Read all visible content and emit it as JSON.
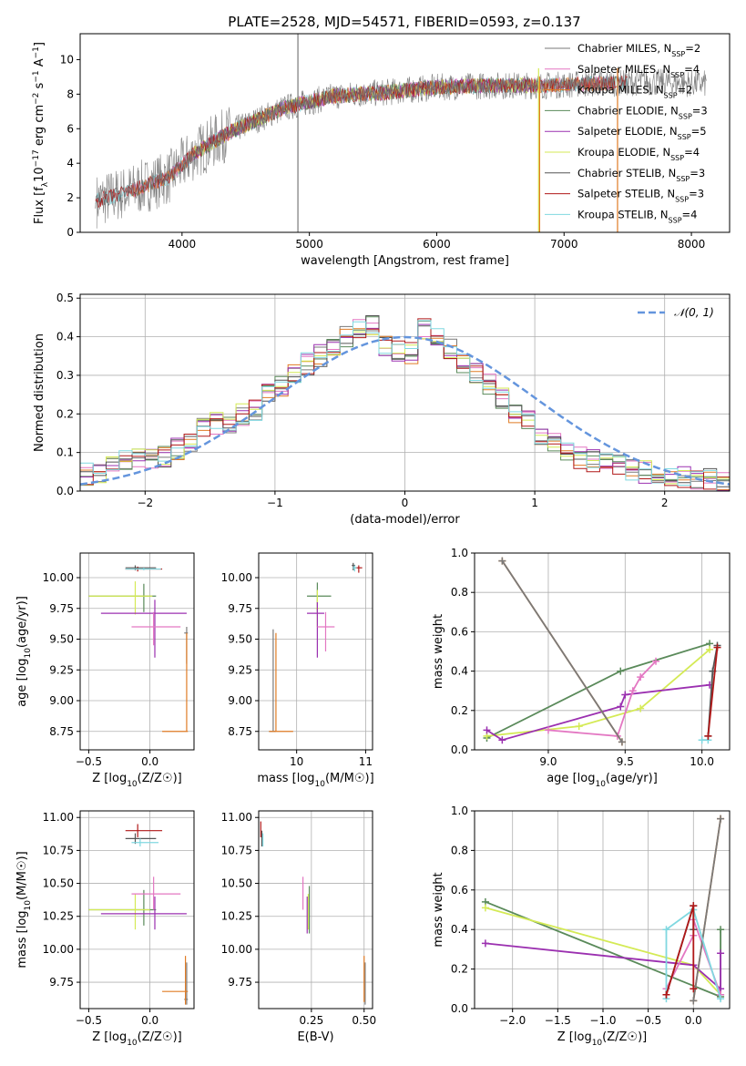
{
  "title": "PLATE=2528, MJD=54571, FIBERID=0593, z=0.137",
  "colors": {
    "Chabrier MILES": "#7a7a7a",
    "Salpeter MILES": "#e377c2",
    "Kroupa MILES": "#e07b24",
    "Chabrier ELODIE": "#5a8a5a",
    "Salpeter ELODIE": "#9b30b0",
    "Kroupa ELODIE": "#d4ea55",
    "Chabrier STELIB": "#555555",
    "Salpeter STELIB": "#b01818",
    "Kroupa STELIB": "#80d8e0",
    "normal": "#6495dd"
  },
  "chart_data": [
    {
      "id": "spectrum",
      "type": "line",
      "xlabel": "wavelength [Angstrom, rest frame]",
      "ylabel": "Flux [f_λ 10^-17 erg cm^-2 s^-1 A^-1]",
      "xlim": [
        3200,
        8300
      ],
      "ylim": [
        0,
        11.5
      ],
      "xticks": [
        4000,
        5000,
        6000,
        7000,
        8000
      ],
      "yticks": [
        0,
        2,
        4,
        6,
        8,
        10
      ],
      "grid": false,
      "legend_position": "top-right",
      "legend": [
        {
          "series": "Chabrier MILES",
          "label": "Chabrier MILES, N",
          "sub": "SSP",
          "val": "=2"
        },
        {
          "series": "Salpeter MILES",
          "label": "Salpeter MILES, N",
          "sub": "SSP",
          "val": "=4"
        },
        {
          "series": "Kroupa MILES",
          "label": "Kroupa MILES, N",
          "sub": "SSP",
          "val": "=2"
        },
        {
          "series": "Chabrier ELODIE",
          "label": "Chabrier ELODIE, N",
          "sub": "SSP",
          "val": "=3"
        },
        {
          "series": "Salpeter ELODIE",
          "label": "Salpeter ELODIE, N",
          "sub": "SSP",
          "val": "=5"
        },
        {
          "series": "Kroupa ELODIE",
          "label": "Kroupa ELODIE, N",
          "sub": "SSP",
          "val": "=4"
        },
        {
          "series": "Chabrier STELIB",
          "label": "Chabrier STELIB, N",
          "sub": "SSP",
          "val": "=3"
        },
        {
          "series": "Salpeter STELIB",
          "label": "Salpeter STELIB, N",
          "sub": "SSP",
          "val": "=3"
        },
        {
          "series": "Kroupa STELIB",
          "label": "Kroupa STELIB, N",
          "sub": "SSP",
          "val": "=4"
        }
      ],
      "continuum": [
        [
          3320,
          1.8
        ],
        [
          3600,
          2.4
        ],
        [
          3900,
          3.2
        ],
        [
          4100,
          4.6
        ],
        [
          4400,
          5.9
        ],
        [
          4800,
          7.2
        ],
        [
          5200,
          7.9
        ],
        [
          5600,
          8.1
        ],
        [
          6000,
          8.4
        ],
        [
          6400,
          8.5
        ],
        [
          6800,
          8.5
        ],
        [
          7200,
          8.6
        ],
        [
          7600,
          8.7
        ],
        [
          8100,
          8.6
        ]
      ],
      "model_ranges": {
        "Kroupa STELIB": [
          3320,
          7500
        ],
        "Salpeter MILES": [
          3600,
          7400
        ],
        "Kroupa MILES": [
          3600,
          7400
        ],
        "Chabrier ELODIE": [
          4100,
          6800
        ],
        "Salpeter ELODIE": [
          4100,
          6800
        ],
        "Kroupa ELODIE": [
          4100,
          6800
        ],
        "Chabrier STELIB": [
          3320,
          7500
        ],
        "Salpeter STELIB": [
          3320,
          7500
        ],
        "Chabrier MILES": [
          3600,
          7400
        ]
      },
      "spikes": [
        {
          "series": "Chabrier MILES",
          "x": 4910,
          "y0": 0,
          "y1": 11.5
        },
        {
          "series": "Kroupa ELODIE",
          "x": 6800,
          "y0": 0,
          "y1": 9.5
        },
        {
          "series": "Kroupa MILES",
          "x": 6808,
          "y0": 0,
          "y1": 9.0
        },
        {
          "series": "Kroupa MILES",
          "x": 7420,
          "y0": 0,
          "y1": 9.5
        }
      ]
    },
    {
      "id": "residuals",
      "type": "line",
      "xlabel": "(data-model)/error",
      "ylabel": "Normed distribution",
      "xlim": [
        -2.5,
        2.5
      ],
      "ylim": [
        0,
        0.51
      ],
      "xticks": [
        -2,
        -1,
        0,
        1,
        2
      ],
      "yticks": [
        0.0,
        0.1,
        0.2,
        0.3,
        0.4,
        0.5
      ],
      "grid": true,
      "legend_position": "top-right",
      "normal_label": "𝒩(0, 1)",
      "bin_edges_start": -2.5,
      "bin_width": 0.1,
      "base_hist": [
        0.045,
        0.05,
        0.06,
        0.075,
        0.085,
        0.08,
        0.09,
        0.11,
        0.13,
        0.16,
        0.175,
        0.175,
        0.2,
        0.21,
        0.25,
        0.27,
        0.3,
        0.33,
        0.35,
        0.38,
        0.4,
        0.42,
        0.43,
        0.38,
        0.36,
        0.36,
        0.42,
        0.4,
        0.37,
        0.33,
        0.31,
        0.28,
        0.24,
        0.2,
        0.18,
        0.15,
        0.13,
        0.1,
        0.085,
        0.08,
        0.075,
        0.065,
        0.055,
        0.05,
        0.045,
        0.04,
        0.035,
        0.03,
        0.03,
        0.025
      ]
    },
    {
      "id": "age_vs_Z",
      "type": "scatter",
      "xlabel": "Z [log10(Z/Z☉)]",
      "ylabel": "age  [log10(age/yr)]",
      "xlim": [
        -0.57,
        0.36
      ],
      "ylim": [
        8.6,
        10.2
      ],
      "xticks": [
        -0.5,
        0.0
      ],
      "yticks": [
        8.75,
        9.0,
        9.25,
        9.5,
        9.75,
        10.0
      ],
      "grid": true,
      "points": [
        {
          "series": "Salpeter STELIB",
          "x": -0.1,
          "xlo": -0.2,
          "xhi": 0.1,
          "y": 10.07,
          "ylo": 10.05,
          "yhi": 10.09
        },
        {
          "series": "Chabrier STELIB",
          "x": -0.12,
          "xlo": -0.2,
          "xhi": 0.05,
          "y": 10.08,
          "ylo": 10.06,
          "yhi": 10.1
        },
        {
          "series": "Kroupa STELIB",
          "x": -0.05,
          "xlo": -0.2,
          "xhi": 0.09,
          "y": 10.07,
          "ylo": 10.06,
          "yhi": 10.08
        },
        {
          "series": "Chabrier ELODIE",
          "x": -0.05,
          "xlo": -0.5,
          "xhi": 0.05,
          "y": 9.85,
          "ylo": 9.72,
          "yhi": 9.95
        },
        {
          "series": "Kroupa ELODIE",
          "x": -0.12,
          "xlo": -0.5,
          "xhi": 0.02,
          "y": 9.85,
          "ylo": 9.7,
          "yhi": 9.97
        },
        {
          "series": "Salpeter ELODIE",
          "x": 0.04,
          "xlo": -0.4,
          "xhi": 0.3,
          "y": 9.71,
          "ylo": 9.35,
          "yhi": 9.82
        },
        {
          "series": "Salpeter MILES",
          "x": 0.03,
          "xlo": -0.15,
          "xhi": 0.25,
          "y": 9.6,
          "ylo": 9.45,
          "yhi": 9.72
        },
        {
          "series": "Chabrier MILES",
          "x": 0.3,
          "xlo": 0.28,
          "xhi": 0.31,
          "y": 9.55,
          "ylo": 9.3,
          "yhi": 9.6
        },
        {
          "series": "Kroupa MILES",
          "x": 0.3,
          "xlo": 0.1,
          "xhi": 0.31,
          "y": 8.75,
          "ylo": 8.75,
          "yhi": 9.55
        }
      ]
    },
    {
      "id": "age_vs_mass",
      "type": "scatter",
      "xlabel": "mass [log10(M/M☉)]",
      "ylabel": "",
      "xlim": [
        9.45,
        11.1
      ],
      "ylim": [
        8.6,
        10.2
      ],
      "xticks": [
        10,
        11
      ],
      "yticks": [
        8.75,
        9.0,
        9.25,
        9.5,
        9.75,
        10.0
      ],
      "grid": true,
      "points": [
        {
          "series": "Salpeter STELIB",
          "x": 10.9,
          "xlo": 10.85,
          "xhi": 10.95,
          "y": 10.08,
          "ylo": 10.04,
          "yhi": 10.1
        },
        {
          "series": "Chabrier STELIB",
          "x": 10.82,
          "xlo": 10.8,
          "xhi": 10.85,
          "y": 10.1,
          "ylo": 10.06,
          "yhi": 10.12
        },
        {
          "series": "Kroupa STELIB",
          "x": 10.84,
          "xlo": 10.81,
          "xhi": 10.87,
          "y": 10.08,
          "ylo": 10.05,
          "yhi": 10.1
        },
        {
          "series": "Chabrier ELODIE",
          "x": 10.3,
          "xlo": 10.15,
          "xhi": 10.5,
          "y": 9.85,
          "ylo": 9.72,
          "yhi": 9.96
        },
        {
          "series": "Kroupa ELODIE",
          "x": 10.3,
          "xlo": 10.28,
          "xhi": 10.32,
          "y": 9.75,
          "ylo": 9.6,
          "yhi": 9.9
        },
        {
          "series": "Salpeter ELODIE",
          "x": 10.3,
          "xlo": 10.15,
          "xhi": 10.4,
          "y": 9.71,
          "ylo": 9.35,
          "yhi": 9.8
        },
        {
          "series": "Salpeter MILES",
          "x": 10.42,
          "xlo": 10.3,
          "xhi": 10.55,
          "y": 9.6,
          "ylo": 9.4,
          "yhi": 9.72
        },
        {
          "series": "Chabrier MILES",
          "x": 9.66,
          "xlo": 9.6,
          "xhi": 9.7,
          "y": 8.75,
          "ylo": 8.75,
          "yhi": 9.58
        },
        {
          "series": "Kroupa MILES",
          "x": 9.7,
          "xlo": 9.6,
          "xhi": 9.95,
          "y": 8.75,
          "ylo": 8.75,
          "yhi": 9.55
        }
      ]
    },
    {
      "id": "weight_vs_age",
      "type": "line",
      "xlabel": "age  [log10(age/yr)]",
      "ylabel": "mass weight",
      "xlim": [
        8.52,
        10.18
      ],
      "ylim": [
        0,
        1.0
      ],
      "xticks": [
        9.0,
        9.5,
        10.0
      ],
      "yticks": [
        0.0,
        0.2,
        0.4,
        0.6,
        0.8,
        1.0
      ],
      "grid": true,
      "series": [
        {
          "name": "Chabrier ELODIE",
          "x": [
            8.6,
            9.47,
            10.05
          ],
          "y": [
            0.06,
            0.4,
            0.54
          ]
        },
        {
          "name": "Kroupa ELODIE",
          "x": [
            8.6,
            9.2,
            9.6,
            10.05
          ],
          "y": [
            0.07,
            0.12,
            0.21,
            0.51
          ]
        },
        {
          "name": "Salpeter ELODIE",
          "x": [
            8.6,
            8.7,
            9.47,
            9.5,
            10.05
          ],
          "y": [
            0.1,
            0.05,
            0.22,
            0.28,
            0.33
          ]
        },
        {
          "name": "Salpeter MILES",
          "x": [
            9.0,
            9.45,
            9.55,
            9.6,
            9.7
          ],
          "y": [
            0.1,
            0.07,
            0.3,
            0.37,
            0.45
          ]
        },
        {
          "name": "Kroupa MILES",
          "x": [
            8.7,
            9.48
          ],
          "y": [
            0.96,
            0.04
          ]
        },
        {
          "name": "Chabrier MILES",
          "x": [
            8.7,
            9.48
          ],
          "y": [
            0.96,
            0.04
          ]
        },
        {
          "name": "Kroupa STELIB",
          "x": [
            10.0,
            10.04,
            10.07
          ],
          "y": [
            0.05,
            0.05,
            0.4
          ]
        },
        {
          "name": "Chabrier STELIB",
          "x": [
            10.04,
            10.07,
            10.1
          ],
          "y": [
            0.07,
            0.4,
            0.53
          ]
        },
        {
          "name": "Salpeter STELIB",
          "x": [
            10.04,
            10.1
          ],
          "y": [
            0.07,
            0.52
          ]
        }
      ]
    },
    {
      "id": "mass_vs_Z",
      "type": "scatter",
      "xlabel": "Z [log10(Z/Z☉)]",
      "ylabel": "mass [log10(M/M☉)]",
      "xlim": [
        -0.57,
        0.36
      ],
      "ylim": [
        9.55,
        11.05
      ],
      "xticks": [
        -0.5,
        0.0
      ],
      "yticks": [
        9.75,
        10.0,
        10.25,
        10.5,
        10.75,
        11.0
      ],
      "grid": true,
      "points": [
        {
          "series": "Salpeter STELIB",
          "x": -0.1,
          "xlo": -0.2,
          "xhi": 0.1,
          "y": 10.9,
          "ylo": 10.85,
          "yhi": 10.95
        },
        {
          "series": "Chabrier STELIB",
          "x": -0.12,
          "xlo": -0.2,
          "xhi": 0.05,
          "y": 10.84,
          "ylo": 10.8,
          "yhi": 10.88
        },
        {
          "series": "Kroupa STELIB",
          "x": -0.08,
          "xlo": -0.15,
          "xhi": 0.07,
          "y": 10.81,
          "ylo": 10.78,
          "yhi": 10.84
        },
        {
          "series": "Chabrier ELODIE",
          "x": -0.05,
          "xlo": -0.5,
          "xhi": 0.05,
          "y": 10.3,
          "ylo": 10.18,
          "yhi": 10.45
        },
        {
          "series": "Kroupa ELODIE",
          "x": -0.12,
          "xlo": -0.5,
          "xhi": 0.0,
          "y": 10.3,
          "ylo": 10.15,
          "yhi": 10.42
        },
        {
          "series": "Salpeter ELODIE",
          "x": 0.04,
          "xlo": -0.4,
          "xhi": 0.3,
          "y": 10.27,
          "ylo": 10.15,
          "yhi": 10.4
        },
        {
          "series": "Salpeter MILES",
          "x": 0.03,
          "xlo": -0.15,
          "xhi": 0.25,
          "y": 10.42,
          "ylo": 10.3,
          "yhi": 10.55
        },
        {
          "series": "Chabrier MILES",
          "x": 0.3,
          "xlo": 0.28,
          "xhi": 0.31,
          "y": 9.62,
          "ylo": 9.58,
          "yhi": 9.9
        },
        {
          "series": "Kroupa MILES",
          "x": 0.29,
          "xlo": 0.1,
          "xhi": 0.31,
          "y": 9.68,
          "ylo": 9.58,
          "yhi": 9.95
        }
      ]
    },
    {
      "id": "mass_vs_ebv",
      "type": "scatter",
      "xlabel": "E(B-V)",
      "ylabel": "",
      "xlim": [
        0.0,
        0.54
      ],
      "ylim": [
        9.55,
        11.05
      ],
      "xticks": [
        0.25,
        0.5
      ],
      "yticks": [
        9.75,
        10.0,
        10.25,
        10.5,
        10.75,
        11.0
      ],
      "grid": true,
      "points": [
        {
          "series": "Salpeter STELIB",
          "x": 0.01,
          "xlo": 0.01,
          "xhi": 0.01,
          "y": 10.92,
          "ylo": 10.85,
          "yhi": 10.97
        },
        {
          "series": "Chabrier STELIB",
          "x": 0.015,
          "xlo": 0.015,
          "xhi": 0.015,
          "y": 10.85,
          "ylo": 10.78,
          "yhi": 10.9
        },
        {
          "series": "Kroupa STELIB",
          "x": 0.02,
          "xlo": 0.02,
          "xhi": 0.02,
          "y": 10.83,
          "ylo": 10.78,
          "yhi": 10.88
        },
        {
          "series": "Chabrier ELODIE",
          "x": 0.24,
          "xlo": 0.24,
          "xhi": 0.24,
          "y": 10.3,
          "ylo": 10.12,
          "yhi": 10.48
        },
        {
          "series": "Kroupa ELODIE",
          "x": 0.235,
          "xlo": 0.235,
          "xhi": 0.235,
          "y": 10.3,
          "ylo": 10.15,
          "yhi": 10.42
        },
        {
          "series": "Salpeter ELODIE",
          "x": 0.23,
          "xlo": 0.23,
          "xhi": 0.23,
          "y": 10.27,
          "ylo": 10.12,
          "yhi": 10.4
        },
        {
          "series": "Salpeter MILES",
          "x": 0.21,
          "xlo": 0.21,
          "xhi": 0.21,
          "y": 10.42,
          "ylo": 10.3,
          "yhi": 10.55
        },
        {
          "series": "Chabrier MILES",
          "x": 0.505,
          "xlo": 0.505,
          "xhi": 0.505,
          "y": 9.7,
          "ylo": 9.58,
          "yhi": 9.9
        },
        {
          "series": "Kroupa MILES",
          "x": 0.5,
          "xlo": 0.5,
          "xhi": 0.5,
          "y": 9.75,
          "ylo": 9.6,
          "yhi": 9.95
        }
      ]
    },
    {
      "id": "weight_vs_Z",
      "type": "line",
      "xlabel": "Z [log10(Z/Z☉)]",
      "ylabel": "mass weight",
      "xlim": [
        -2.42,
        0.4
      ],
      "ylim": [
        0,
        1.0
      ],
      "xticks": [
        -2.0,
        -1.5,
        -1.0,
        -0.5,
        0.0
      ],
      "yticks": [
        0.0,
        0.2,
        0.4,
        0.6,
        0.8,
        1.0
      ],
      "grid": true,
      "series": [
        {
          "name": "Chabrier ELODIE",
          "x": [
            -2.3,
            0.3,
            0.3
          ],
          "y": [
            0.54,
            0.06,
            0.4
          ]
        },
        {
          "name": "Kroupa ELODIE",
          "x": [
            -2.3,
            0.0,
            0.3
          ],
          "y": [
            0.51,
            0.22,
            0.07
          ]
        },
        {
          "name": "Salpeter ELODIE",
          "x": [
            -2.3,
            0.0,
            0.3,
            0.3
          ],
          "y": [
            0.33,
            0.22,
            0.1,
            0.28
          ]
        },
        {
          "name": "Salpeter MILES",
          "x": [
            -0.3,
            0.0,
            0.0,
            0.3
          ],
          "y": [
            0.1,
            0.37,
            0.45,
            0.07
          ]
        },
        {
          "name": "Kroupa MILES",
          "x": [
            0.0,
            0.3
          ],
          "y": [
            0.04,
            0.96
          ]
        },
        {
          "name": "Chabrier MILES",
          "x": [
            0.0,
            0.3
          ],
          "y": [
            0.04,
            0.96
          ]
        },
        {
          "name": "Kroupa STELIB",
          "x": [
            -0.3,
            -0.3,
            0.0,
            0.3
          ],
          "y": [
            0.05,
            0.4,
            0.5,
            0.05
          ]
        },
        {
          "name": "Chabrier STELIB",
          "x": [
            -0.3,
            0.0,
            0.0
          ],
          "y": [
            0.07,
            0.52,
            0.4
          ]
        },
        {
          "name": "Salpeter STELIB",
          "x": [
            -0.3,
            0.0,
            0.0
          ],
          "y": [
            0.07,
            0.52,
            0.1
          ]
        }
      ]
    }
  ]
}
